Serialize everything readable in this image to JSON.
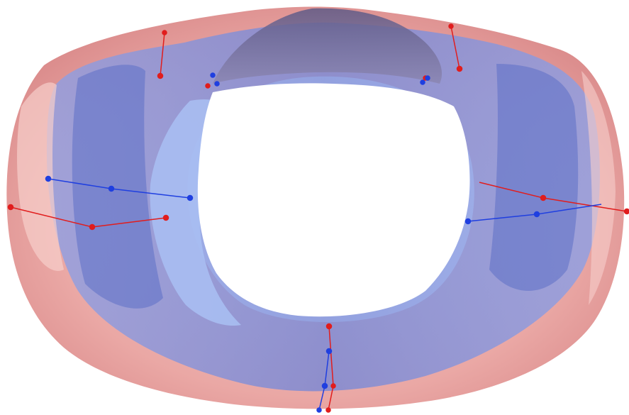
{
  "scene": {
    "subject": "overlaid-3d-ring-meshes",
    "colors": {
      "background": "#ffffff",
      "pink_mesh": "#e89a9a",
      "pink_mesh_dark": "#d98080",
      "pink_mesh_light": "#f3c4c0",
      "blue_mesh": "#7f93e0",
      "blue_mesh_dark": "#5a6fc4",
      "blue_mesh_light": "#a9bdf2",
      "inner_shadow": "#6e6890",
      "red_marker": "#e11d1d",
      "blue_marker": "#1f3fe0"
    }
  }
}
